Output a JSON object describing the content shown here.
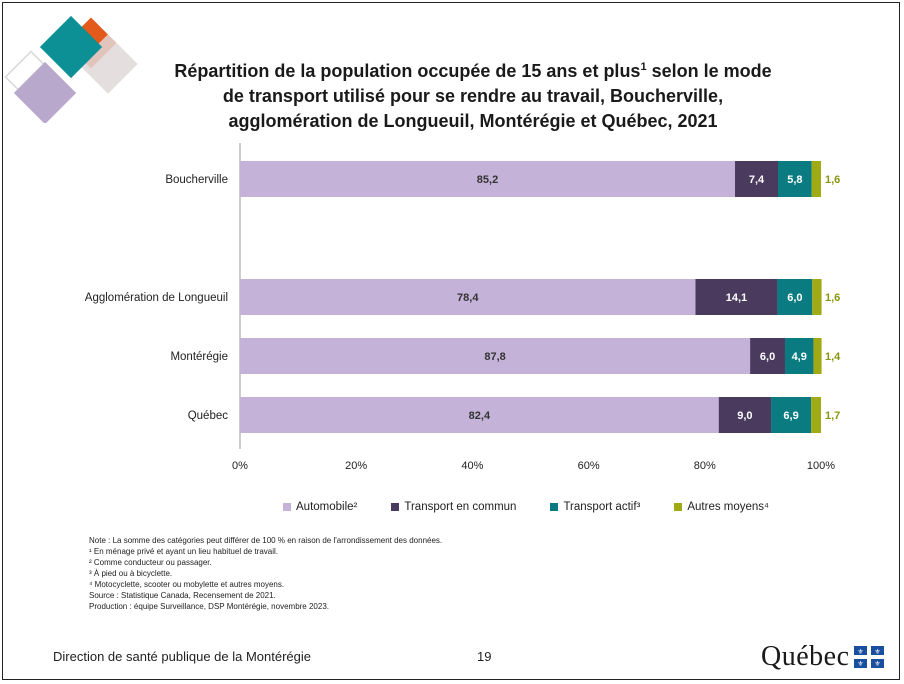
{
  "title": {
    "line1": "Répartition de la population occupée de 15 ans et plus",
    "sup": "1",
    "line1b": " selon le mode",
    "line2": "de transport utilisé pour se rendre au travail, Boucherville,",
    "line3": "agglomération de Longueuil, Montérégie et Québec, 2021"
  },
  "colors": {
    "automobile": "#c4b2d8",
    "transport_en_commun": "#4a3a5e",
    "transport_actif": "#0b7b82",
    "autres_moyens": "#a0aa14"
  },
  "chart_data": {
    "type": "bar",
    "orientation": "horizontal",
    "stacked": "percent",
    "categories": [
      "Boucherville",
      "Agglomération de Longueuil",
      "Montérégie",
      "Québec"
    ],
    "series": [
      {
        "name": "Automobile²",
        "values": [
          85.2,
          78.4,
          87.8,
          82.4
        ],
        "labels": [
          "85,2",
          "78,4",
          "87,8",
          "82,4"
        ]
      },
      {
        "name": "Transport en commun",
        "values": [
          7.4,
          14.1,
          6.0,
          9.0
        ],
        "labels": [
          "7,4",
          "14,1",
          "6,0",
          "9,0"
        ]
      },
      {
        "name": "Transport actif³",
        "values": [
          5.8,
          6.0,
          4.9,
          6.9
        ],
        "labels": [
          "5,8",
          "6,0",
          "4,9",
          "6,9"
        ]
      },
      {
        "name": "Autres moyens⁴",
        "values": [
          1.6,
          1.6,
          1.4,
          1.7
        ],
        "labels": [
          "1,6",
          "1,6",
          "1,4",
          "1,7"
        ]
      }
    ],
    "xlim": [
      0,
      100
    ],
    "xticks": [
      "0%",
      "20%",
      "40%",
      "60%",
      "80%",
      "100%"
    ],
    "legend_position": "bottom"
  },
  "notes": [
    "Note : La somme des catégories peut différer de 100 % en raison de l'arrondissement des données.",
    "¹ En ménage privé et ayant un lieu habituel de travail.",
    "² Comme conducteur ou passager.",
    "³ À pied ou à bicyclette.",
    "⁴ Motocyclette, scooter ou mobylette et autres moyens.",
    "Source : Statistique Canada, Recensement de 2021.",
    "Production : équipe Surveillance, DSP Montérégie, novembre 2023."
  ],
  "footer": {
    "organization": "Direction de santé publique de la Montérégie",
    "page_number": "19",
    "logo_text": "Québec"
  }
}
